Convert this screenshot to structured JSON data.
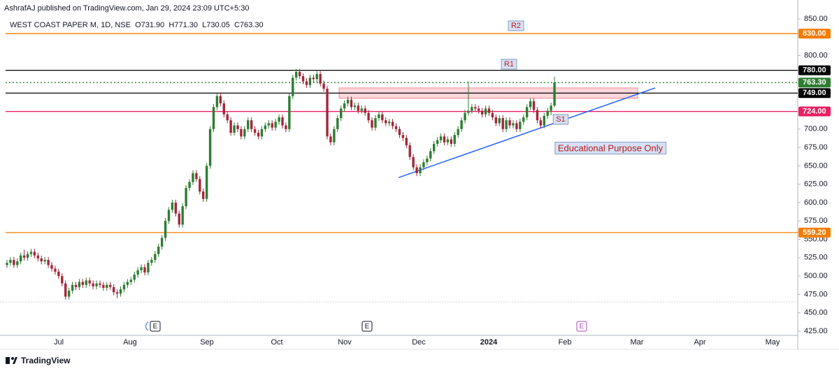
{
  "header": {
    "publisher": "AshrafAJ published on TradingView.com, Jan 29, 2024 23:09 UTC+5:30",
    "symbol": "WEST COAST PAPER M, 1D, NSE  O731.90  H771.30  L730.05  C763.30"
  },
  "footer": {
    "brand": "TradingView"
  },
  "chart_data": {
    "type": "candlestick",
    "up_color": "#2e7d32",
    "down_color": "#a3263a",
    "ylim": [
      419.3,
      875.7
    ],
    "yticks": [
      {
        "value": 850,
        "label": "850.00"
      },
      {
        "value": 800,
        "label": "800.00"
      },
      {
        "value": 700,
        "label": "700.00"
      },
      {
        "value": 675,
        "label": "675.00"
      },
      {
        "value": 650,
        "label": "650.00"
      },
      {
        "value": 625,
        "label": "625.00"
      },
      {
        "value": 600,
        "label": "600.00"
      },
      {
        "value": 575,
        "label": "575.00"
      },
      {
        "value": 550,
        "label": "550.00"
      },
      {
        "value": 525,
        "label": "525.00"
      },
      {
        "value": 500,
        "label": "500.00"
      },
      {
        "value": 475,
        "label": "475.00"
      },
      {
        "value": 450,
        "label": "450.00"
      },
      {
        "value": 425,
        "label": "425.00"
      }
    ],
    "x_labels": [
      "Jul",
      "Aug",
      "Sep",
      "Oct",
      "Nov",
      "Dec",
      "2024",
      "Feb",
      "Mar",
      "Apr",
      "May"
    ],
    "hlines": [
      {
        "value": 830,
        "label": "830.00",
        "color": "#f57c00",
        "style": "solid"
      },
      {
        "value": 780,
        "label": "780.00",
        "color": "#000000",
        "style": "solid"
      },
      {
        "value": 763.3,
        "label": "763.30",
        "color": "#2e7d32",
        "style": "dotted"
      },
      {
        "value": 749,
        "label": "749.00",
        "color": "#000000",
        "style": "solid"
      },
      {
        "value": 724,
        "label": "724.00",
        "color": "#e91e63",
        "style": "solid"
      },
      {
        "value": 559.2,
        "label": "559.20",
        "color": "#f57c00",
        "style": "solid"
      }
    ],
    "zone": {
      "values": [
        742,
        756
      ],
      "color": "#f28b95"
    },
    "trendline": {
      "values": [
        634,
        756
      ],
      "color": "#2962ff"
    },
    "annotations": [
      {
        "text": "R2"
      },
      {
        "text": "R1"
      },
      {
        "text": "S1"
      },
      {
        "text": "Educational Purpose Only"
      }
    ],
    "events": [
      "E",
      "E",
      "E"
    ],
    "candles": [
      [
        515,
        522,
        511,
        518
      ],
      [
        518,
        526,
        514,
        522
      ],
      [
        522,
        526,
        511,
        515
      ],
      [
        515,
        524,
        511,
        520
      ],
      [
        520,
        532,
        516,
        528
      ],
      [
        528,
        536,
        521,
        525
      ],
      [
        525,
        534,
        521,
        530
      ],
      [
        530,
        537,
        526,
        533
      ],
      [
        533,
        537,
        524,
        528
      ],
      [
        528,
        532,
        520,
        524
      ],
      [
        524,
        528,
        516,
        520
      ],
      [
        520,
        526,
        516,
        522
      ],
      [
        522,
        526,
        511,
        515
      ],
      [
        515,
        519,
        506,
        510
      ],
      [
        510,
        514,
        502,
        506
      ],
      [
        506,
        510,
        496,
        500
      ],
      [
        500,
        504,
        486,
        490
      ],
      [
        490,
        494,
        468,
        472
      ],
      [
        472,
        484,
        468,
        480
      ],
      [
        480,
        492,
        476,
        488
      ],
      [
        488,
        492,
        481,
        485
      ],
      [
        485,
        496,
        481,
        492
      ],
      [
        492,
        496,
        484,
        488
      ],
      [
        488,
        498,
        484,
        494
      ],
      [
        494,
        498,
        486,
        490
      ],
      [
        490,
        494,
        482,
        486
      ],
      [
        486,
        494,
        482,
        490
      ],
      [
        490,
        494,
        484,
        488
      ],
      [
        488,
        492,
        480,
        484
      ],
      [
        484,
        492,
        480,
        488
      ],
      [
        488,
        492,
        481,
        485
      ],
      [
        485,
        489,
        474,
        478
      ],
      [
        478,
        482,
        470,
        476
      ],
      [
        476,
        486,
        472,
        482
      ],
      [
        482,
        492,
        478,
        488
      ],
      [
        488,
        496,
        484,
        492
      ],
      [
        492,
        499,
        488,
        495
      ],
      [
        495,
        506,
        491,
        502
      ],
      [
        502,
        512,
        498,
        508
      ],
      [
        508,
        516,
        504,
        512
      ],
      [
        512,
        516,
        501,
        505
      ],
      [
        505,
        522,
        501,
        518
      ],
      [
        518,
        526,
        514,
        522
      ],
      [
        522,
        534,
        518,
        530
      ],
      [
        530,
        544,
        526,
        540
      ],
      [
        540,
        556,
        536,
        552
      ],
      [
        552,
        579,
        548,
        575
      ],
      [
        575,
        594,
        571,
        590
      ],
      [
        590,
        604,
        586,
        600
      ],
      [
        600,
        604,
        581,
        585
      ],
      [
        585,
        589,
        566,
        570
      ],
      [
        570,
        599,
        566,
        595
      ],
      [
        595,
        624,
        591,
        620
      ],
      [
        620,
        632,
        616,
        628
      ],
      [
        628,
        644,
        624,
        640
      ],
      [
        640,
        644,
        628,
        632
      ],
      [
        632,
        636,
        611,
        615
      ],
      [
        615,
        619,
        601,
        605
      ],
      [
        605,
        654,
        601,
        650
      ],
      [
        650,
        704,
        646,
        700
      ],
      [
        700,
        734,
        696,
        730
      ],
      [
        730,
        749,
        726,
        745
      ],
      [
        745,
        749,
        731,
        735
      ],
      [
        735,
        739,
        716,
        720
      ],
      [
        720,
        724,
        708,
        712
      ],
      [
        712,
        716,
        691,
        695
      ],
      [
        695,
        709,
        691,
        705
      ],
      [
        705,
        709,
        696,
        700
      ],
      [
        700,
        704,
        686,
        690
      ],
      [
        690,
        704,
        686,
        700
      ],
      [
        700,
        716,
        696,
        712
      ],
      [
        712,
        716,
        696,
        700
      ],
      [
        700,
        704,
        691,
        695
      ],
      [
        695,
        699,
        686,
        690
      ],
      [
        690,
        704,
        686,
        700
      ],
      [
        700,
        709,
        696,
        705
      ],
      [
        705,
        712,
        701,
        708
      ],
      [
        708,
        712,
        698,
        702
      ],
      [
        702,
        714,
        698,
        710
      ],
      [
        710,
        720,
        706,
        716
      ],
      [
        716,
        720,
        701,
        705
      ],
      [
        705,
        709,
        696,
        700
      ],
      [
        700,
        749,
        696,
        745
      ],
      [
        745,
        774,
        741,
        770
      ],
      [
        770,
        782,
        766,
        778
      ],
      [
        778,
        782,
        768,
        772
      ],
      [
        772,
        776,
        761,
        765
      ],
      [
        765,
        769,
        756,
        760
      ],
      [
        760,
        774,
        756,
        770
      ],
      [
        770,
        774,
        764,
        768
      ],
      [
        768,
        779,
        764,
        775
      ],
      [
        775,
        779,
        758,
        762
      ],
      [
        762,
        766,
        751,
        755
      ],
      [
        755,
        759,
        686,
        690
      ],
      [
        690,
        694,
        678,
        682
      ],
      [
        682,
        704,
        678,
        700
      ],
      [
        700,
        719,
        696,
        715
      ],
      [
        715,
        732,
        711,
        728
      ],
      [
        728,
        739,
        724,
        735
      ],
      [
        735,
        744,
        731,
        740
      ],
      [
        740,
        744,
        726,
        730
      ],
      [
        730,
        736,
        726,
        732
      ],
      [
        732,
        736,
        721,
        725
      ],
      [
        725,
        732,
        721,
        728
      ],
      [
        728,
        732,
        718,
        722
      ],
      [
        722,
        726,
        708,
        712
      ],
      [
        712,
        716,
        698,
        702
      ],
      [
        702,
        719,
        698,
        715
      ],
      [
        715,
        724,
        711,
        720
      ],
      [
        720,
        724,
        708,
        712
      ],
      [
        712,
        716,
        704,
        708
      ],
      [
        708,
        714,
        704,
        710
      ],
      [
        710,
        714,
        700,
        704
      ],
      [
        704,
        708,
        696,
        700
      ],
      [
        700,
        704,
        688,
        692
      ],
      [
        692,
        696,
        684,
        688
      ],
      [
        688,
        692,
        674,
        678
      ],
      [
        678,
        682,
        658,
        662
      ],
      [
        662,
        666,
        644,
        648
      ],
      [
        648,
        652,
        636,
        640
      ],
      [
        640,
        652,
        636,
        648
      ],
      [
        648,
        659,
        644,
        655
      ],
      [
        655,
        664,
        651,
        660
      ],
      [
        660,
        674,
        656,
        670
      ],
      [
        670,
        684,
        666,
        680
      ],
      [
        680,
        689,
        676,
        685
      ],
      [
        685,
        694,
        681,
        690
      ],
      [
        690,
        694,
        678,
        682
      ],
      [
        682,
        690,
        678,
        686
      ],
      [
        686,
        690,
        676,
        680
      ],
      [
        680,
        696,
        676,
        692
      ],
      [
        692,
        704,
        688,
        700
      ],
      [
        700,
        716,
        696,
        712
      ],
      [
        712,
        726,
        708,
        722
      ],
      [
        722,
        765,
        718,
        725
      ],
      [
        725,
        734,
        721,
        730
      ],
      [
        730,
        734,
        724,
        728
      ],
      [
        728,
        732,
        721,
        725
      ],
      [
        725,
        729,
        716,
        720
      ],
      [
        720,
        732,
        716,
        728
      ],
      [
        728,
        732,
        718,
        722
      ],
      [
        722,
        726,
        712,
        716
      ],
      [
        716,
        720,
        704,
        708
      ],
      [
        708,
        719,
        704,
        715
      ],
      [
        715,
        719,
        696,
        700
      ],
      [
        700,
        716,
        696,
        712
      ],
      [
        712,
        716,
        701,
        705
      ],
      [
        705,
        712,
        701,
        708
      ],
      [
        708,
        712,
        696,
        700
      ],
      [
        700,
        714,
        696,
        710
      ],
      [
        710,
        720,
        706,
        716
      ],
      [
        716,
        734,
        712,
        730
      ],
      [
        730,
        742,
        726,
        738
      ],
      [
        738,
        742,
        722,
        726
      ],
      [
        726,
        730,
        708,
        712
      ],
      [
        712,
        716,
        701,
        705
      ],
      [
        705,
        722,
        701,
        718
      ],
      [
        718,
        729,
        714,
        725
      ],
      [
        725,
        736,
        719,
        731.9
      ],
      [
        731.9,
        771.3,
        730.05,
        763.3
      ]
    ]
  }
}
